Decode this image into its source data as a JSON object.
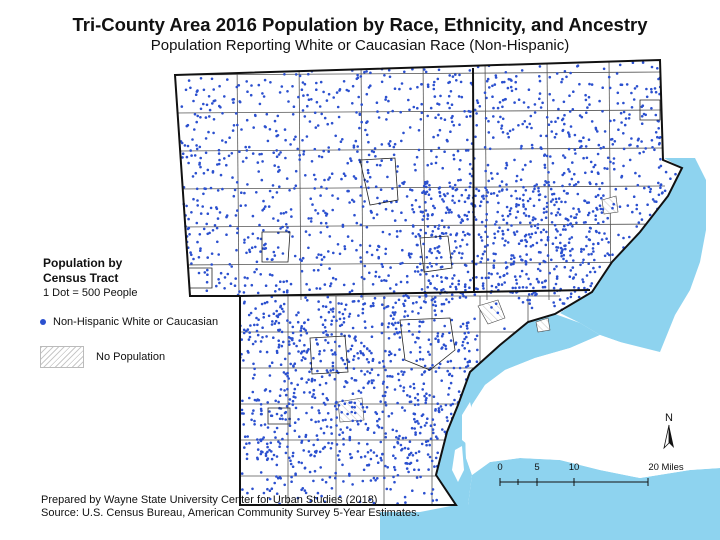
{
  "map": {
    "title": "Tri-County Area 2016 Population by Race, Ethnicity, and Ancestry",
    "subtitle": "Population Reporting White or Caucasian Race (Non-Hispanic)",
    "colors": {
      "water": "#8ed3ef",
      "dots": "#2b50cf",
      "boundary": "#111111",
      "tract_lines": "#555555",
      "no_population_hatch": "#c9c9c9"
    }
  },
  "legend": {
    "title_line1": "Population by",
    "title_line2": "Census Tract",
    "dot_ratio": "1 Dot = 500 People",
    "series_label": "Non-Hispanic White or Caucasian",
    "no_population_label": "No Population"
  },
  "north_arrow": {
    "label": "N",
    "icon": "north-arrow-icon"
  },
  "scale_bar": {
    "ticks": [
      "0",
      "5",
      "10",
      "20 Miles"
    ]
  },
  "credits": {
    "line1": "Prepared by Wayne State University Center for Urban Studies (2018)",
    "line2": "Source: U.S. Census Bureau, American Community Survey 5-Year Estimates."
  }
}
